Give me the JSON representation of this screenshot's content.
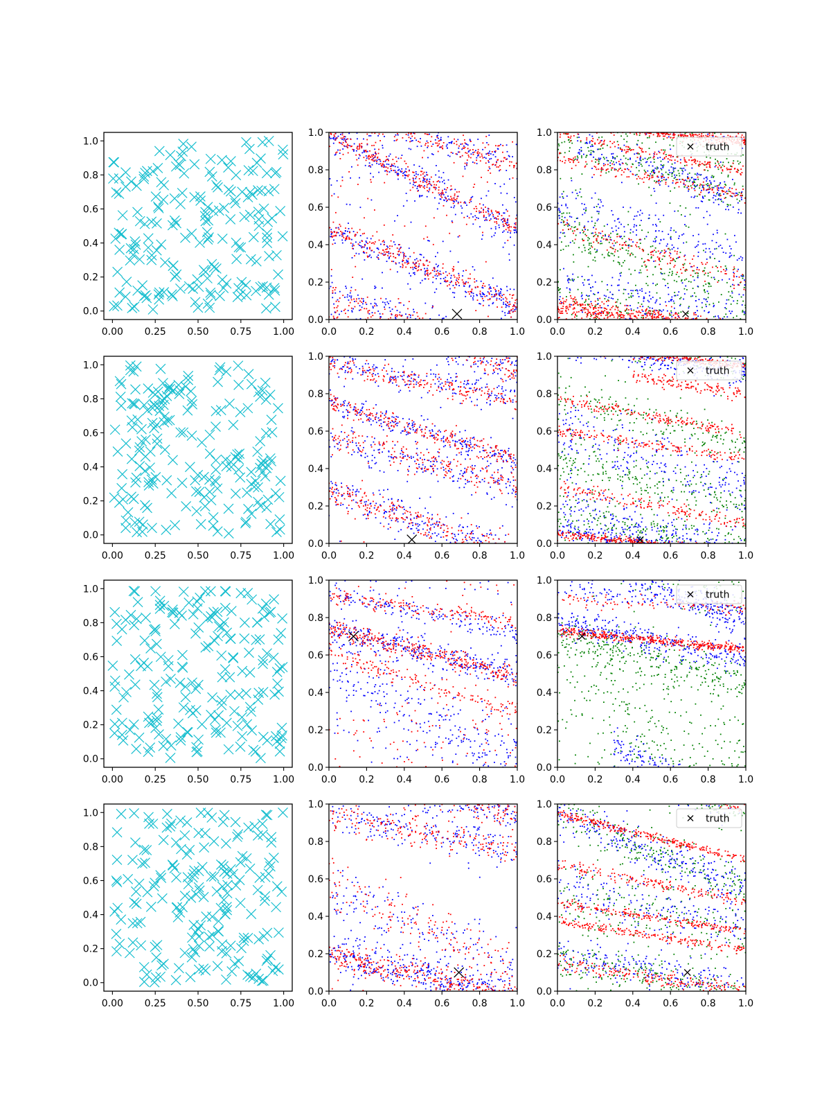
{
  "colors": {
    "background": "#ffffff",
    "axis": "#000000",
    "draws": "#17becf",
    "red": "#ff0000",
    "blue": "#0000ff",
    "green": "#008000",
    "truth": "#000000"
  },
  "legend_label": "truth",
  "tick_labels": {
    "left_x": [
      "0.00",
      "0.25",
      "0.50",
      "0.75",
      "1.00"
    ],
    "left_y": [
      "0.0",
      "0.2",
      "0.4",
      "0.6",
      "0.8",
      "1.0"
    ],
    "right_x": [
      "0.0",
      "0.2",
      "0.4",
      "0.6",
      "0.8",
      "1.0"
    ],
    "right_y": [
      "0.0",
      "0.2",
      "0.4",
      "0.6",
      "0.8",
      "1.0"
    ]
  },
  "chart_data": [
    {
      "type": "scatter",
      "row": 1,
      "column": 1,
      "marker": "x",
      "color": "#17becf",
      "xlim": [
        -0.05,
        1.05
      ],
      "ylim": [
        -0.05,
        1.05
      ],
      "n_points": 200,
      "xticks": [
        0,
        0.25,
        0.5,
        0.75,
        1.0
      ],
      "yticks": [
        0,
        0.2,
        0.4,
        0.6,
        0.8,
        1.0
      ],
      "title": "",
      "xlabel": "",
      "ylabel": ""
    },
    {
      "type": "scatter",
      "row": 1,
      "column": 2,
      "xlim": [
        0,
        1
      ],
      "ylim": [
        0,
        1
      ],
      "xticks": [
        0,
        0.2,
        0.4,
        0.6,
        0.8,
        1.0
      ],
      "yticks": [
        0,
        0.2,
        0.4,
        0.6,
        0.8,
        1.0
      ],
      "series": [
        {
          "color": "#0000ff",
          "bands": [
            [
              0.0,
              0.98,
              -0.5,
              0.04,
              0.08
            ],
            [
              0.0,
              0.47,
              -0.4,
              0.04,
              0.08
            ],
            [
              0.0,
              0.13,
              -0.3,
              0.05,
              0.06
            ],
            [
              0.0,
              0.8,
              -0.4,
              0.3,
              0.03
            ]
          ]
        },
        {
          "color": "#ff0000",
          "bands": [
            [
              0.0,
              0.99,
              -0.5,
              0.03,
              0.08
            ],
            [
              0.0,
              0.48,
              -0.4,
              0.03,
              0.08
            ],
            [
              0.0,
              0.12,
              -0.3,
              0.04,
              0.06
            ],
            [
              0.0,
              0.8,
              -0.4,
              0.3,
              0.03
            ]
          ]
        }
      ],
      "truth": {
        "x": 0.68,
        "y": 0.03
      }
    },
    {
      "type": "scatter",
      "row": 1,
      "column": 3,
      "xlim": [
        0,
        1
      ],
      "ylim": [
        0,
        1
      ],
      "xticks": [
        0,
        0.2,
        0.4,
        0.6,
        0.8,
        1.0
      ],
      "yticks": [
        0,
        0.2,
        0.4,
        0.6,
        0.8,
        1.0
      ],
      "series": [
        {
          "color": "#008000",
          "bands": [
            [
              0.0,
              0.95,
              -0.3,
              0.05,
              0.06
            ],
            [
              0.0,
              0.5,
              -0.4,
              0.08,
              0.08
            ],
            [
              0.0,
              0.15,
              -0.3,
              0.06,
              0.06
            ],
            [
              0.0,
              0.6,
              -0.4,
              0.3,
              0.03
            ]
          ]
        },
        {
          "color": "#0000ff",
          "bands": [
            [
              0.1,
              0.98,
              -0.35,
              0.05,
              0.07
            ],
            [
              0.0,
              0.6,
              -0.3,
              0.08,
              0.07
            ],
            [
              0.0,
              0.2,
              -0.2,
              0.06,
              0.06
            ]
          ]
        },
        {
          "color": "#ff0000",
          "bands": [
            [
              0.0,
              0.99,
              -0.2,
              0.015,
              0.05
            ],
            [
              0.0,
              0.86,
              -0.2,
              0.02,
              0.05
            ],
            [
              0.0,
              0.5,
              -0.3,
              0.03,
              0.05
            ],
            [
              0.0,
              0.1,
              -0.15,
              0.02,
              0.08
            ],
            [
              0.0,
              0.05,
              -0.1,
              0.015,
              0.08
            ]
          ]
        }
      ],
      "truth": {
        "x": 0.68,
        "y": 0.03
      }
    },
    {
      "type": "scatter",
      "row": 2,
      "column": 1,
      "marker": "x",
      "color": "#17becf",
      "xlim": [
        -0.05,
        1.05
      ],
      "ylim": [
        -0.05,
        1.05
      ],
      "n_points": 200,
      "xticks": [
        0,
        0.25,
        0.5,
        0.75,
        1.0
      ],
      "yticks": [
        0,
        0.2,
        0.4,
        0.6,
        0.8,
        1.0
      ],
      "title": "",
      "xlabel": "",
      "ylabel": ""
    },
    {
      "type": "scatter",
      "row": 2,
      "column": 2,
      "xlim": [
        0,
        1
      ],
      "ylim": [
        0,
        1
      ],
      "xticks": [
        0,
        0.2,
        0.4,
        0.6,
        0.8,
        1.0
      ],
      "yticks": [
        0,
        0.2,
        0.4,
        0.6,
        0.8,
        1.0
      ],
      "series": [
        {
          "color": "#0000ff",
          "bands": [
            [
              0.0,
              0.97,
              -0.2,
              0.04,
              0.06
            ],
            [
              0.0,
              0.75,
              -0.3,
              0.03,
              0.07
            ],
            [
              0.0,
              0.55,
              -0.25,
              0.05,
              0.06
            ],
            [
              0.0,
              0.28,
              -0.35,
              0.05,
              0.08
            ]
          ]
        },
        {
          "color": "#ff0000",
          "bands": [
            [
              0.0,
              0.96,
              -0.2,
              0.03,
              0.06
            ],
            [
              0.0,
              0.75,
              -0.3,
              0.025,
              0.07
            ],
            [
              0.0,
              0.57,
              -0.25,
              0.04,
              0.06
            ],
            [
              0.0,
              0.28,
              -0.35,
              0.04,
              0.08
            ]
          ]
        }
      ],
      "truth": {
        "x": 0.44,
        "y": 0.02
      }
    },
    {
      "type": "scatter",
      "row": 2,
      "column": 3,
      "xlim": [
        0,
        1
      ],
      "ylim": [
        0,
        1
      ],
      "xticks": [
        0,
        0.2,
        0.4,
        0.6,
        0.8,
        1.0
      ],
      "yticks": [
        0,
        0.2,
        0.4,
        0.6,
        0.8,
        1.0
      ],
      "series": [
        {
          "color": "#008000",
          "bands": [
            [
              0.0,
              0.8,
              -0.3,
              0.06,
              0.06
            ],
            [
              0.0,
              0.45,
              -0.25,
              0.08,
              0.08
            ],
            [
              0.0,
              0.15,
              -0.2,
              0.06,
              0.07
            ]
          ]
        },
        {
          "color": "#0000ff",
          "bands": [
            [
              0.0,
              0.6,
              -0.3,
              0.08,
              0.07
            ],
            [
              0.0,
              0.2,
              -0.25,
              0.07,
              0.07
            ],
            [
              0.0,
              0.06,
              -0.15,
              0.03,
              0.08
            ]
          ]
        },
        {
          "color": "#ff0000",
          "bands": [
            [
              0.0,
              0.77,
              -0.18,
              0.015,
              0.05
            ],
            [
              0.0,
              0.6,
              -0.15,
              0.015,
              0.05
            ],
            [
              0.0,
              0.3,
              -0.2,
              0.02,
              0.05
            ],
            [
              0.0,
              0.05,
              -0.1,
              0.012,
              0.1
            ],
            [
              0.4,
              0.95,
              -0.15,
              0.02,
              0.04
            ]
          ]
        }
      ],
      "truth": {
        "x": 0.44,
        "y": 0.02
      }
    },
    {
      "type": "scatter",
      "row": 3,
      "column": 1,
      "marker": "x",
      "color": "#17becf",
      "xlim": [
        -0.05,
        1.05
      ],
      "ylim": [
        -0.05,
        1.05
      ],
      "n_points": 200,
      "xticks": [
        0,
        0.25,
        0.5,
        0.75,
        1.0
      ],
      "yticks": [
        0,
        0.2,
        0.4,
        0.6,
        0.8,
        1.0
      ],
      "title": "",
      "xlabel": "",
      "ylabel": ""
    },
    {
      "type": "scatter",
      "row": 3,
      "column": 2,
      "xlim": [
        0,
        1
      ],
      "ylim": [
        0,
        1
      ],
      "xticks": [
        0,
        0.2,
        0.4,
        0.6,
        0.8,
        1.0
      ],
      "yticks": [
        0,
        0.2,
        0.4,
        0.6,
        0.8,
        1.0
      ],
      "series": [
        {
          "color": "#0000ff",
          "bands": [
            [
              0.0,
              0.74,
              -0.25,
              0.04,
              0.1
            ],
            [
              0.0,
              0.92,
              -0.2,
              0.03,
              0.05
            ],
            [
              0.0,
              0.55,
              -0.5,
              0.08,
              0.06
            ],
            [
              0.0,
              0.2,
              -0.1,
              0.15,
              0.03
            ]
          ]
        },
        {
          "color": "#ff0000",
          "bands": [
            [
              0.0,
              0.74,
              -0.25,
              0.025,
              0.1
            ],
            [
              0.0,
              0.92,
              -0.15,
              0.02,
              0.05
            ],
            [
              0.0,
              0.6,
              -0.3,
              0.03,
              0.05
            ],
            [
              0.0,
              0.2,
              -0.1,
              0.15,
              0.03
            ]
          ]
        }
      ],
      "truth": {
        "x": 0.13,
        "y": 0.7
      }
    },
    {
      "type": "scatter",
      "row": 3,
      "column": 3,
      "xlim": [
        0,
        1
      ],
      "ylim": [
        0,
        1
      ],
      "xticks": [
        0,
        0.2,
        0.4,
        0.6,
        0.8,
        1.0
      ],
      "yticks": [
        0,
        0.2,
        0.4,
        0.6,
        0.8,
        1.0
      ],
      "series": [
        {
          "color": "#008000",
          "bands": [
            [
              0.0,
              0.7,
              -0.25,
              0.06,
              0.1
            ],
            [
              0.0,
              0.5,
              -0.5,
              0.15,
              0.06
            ],
            [
              0.0,
              0.2,
              -0.1,
              0.15,
              0.03
            ]
          ]
        },
        {
          "color": "#0000ff",
          "bands": [
            [
              0.0,
              0.78,
              -0.2,
              0.04,
              0.1
            ],
            [
              0.3,
              0.25,
              -0.5,
              0.05,
              0.08
            ],
            [
              0.0,
              0.95,
              -0.1,
              0.03,
              0.04
            ]
          ]
        },
        {
          "color": "#ff0000",
          "bands": [
            [
              0.0,
              0.73,
              -0.1,
              0.012,
              0.12
            ],
            [
              0.0,
              0.9,
              -0.05,
              0.02,
              0.03
            ]
          ]
        }
      ],
      "truth": {
        "x": 0.13,
        "y": 0.7
      }
    },
    {
      "type": "scatter",
      "row": 4,
      "column": 1,
      "marker": "x",
      "color": "#17becf",
      "xlim": [
        -0.05,
        1.05
      ],
      "ylim": [
        -0.05,
        1.05
      ],
      "n_points": 200,
      "xticks": [
        0,
        0.25,
        0.5,
        0.75,
        1.0
      ],
      "yticks": [
        0,
        0.2,
        0.4,
        0.6,
        0.8,
        1.0
      ],
      "title": "",
      "xlabel": "",
      "ylabel": ""
    },
    {
      "type": "scatter",
      "row": 4,
      "column": 2,
      "xlim": [
        0,
        1
      ],
      "ylim": [
        0,
        1
      ],
      "xticks": [
        0,
        0.2,
        0.4,
        0.6,
        0.8,
        1.0
      ],
      "yticks": [
        0,
        0.2,
        0.4,
        0.6,
        0.8,
        1.0
      ],
      "series": [
        {
          "color": "#0000ff",
          "bands": [
            [
              0.0,
              0.2,
              -0.25,
              0.05,
              0.1
            ],
            [
              0.0,
              0.95,
              -0.2,
              0.05,
              0.06
            ],
            [
              0.0,
              0.5,
              -0.4,
              0.1,
              0.06
            ]
          ]
        },
        {
          "color": "#ff0000",
          "bands": [
            [
              0.0,
              0.2,
              -0.25,
              0.04,
              0.1
            ],
            [
              0.0,
              0.95,
              -0.2,
              0.04,
              0.06
            ],
            [
              0.0,
              0.6,
              -0.5,
              0.08,
              0.05
            ]
          ]
        }
      ],
      "truth": {
        "x": 0.69,
        "y": 0.1
      }
    },
    {
      "type": "scatter",
      "row": 4,
      "column": 3,
      "xlim": [
        0,
        1
      ],
      "ylim": [
        0,
        1
      ],
      "xticks": [
        0,
        0.2,
        0.4,
        0.6,
        0.8,
        1.0
      ],
      "yticks": [
        0,
        0.2,
        0.4,
        0.6,
        0.8,
        1.0
      ],
      "series": [
        {
          "color": "#008000",
          "bands": [
            [
              0.0,
              0.95,
              -0.4,
              0.06,
              0.07
            ],
            [
              0.0,
              0.5,
              -0.2,
              0.1,
              0.06
            ],
            [
              0.0,
              0.18,
              -0.2,
              0.06,
              0.07
            ]
          ]
        },
        {
          "color": "#0000ff",
          "bands": [
            [
              0.0,
              0.95,
              -0.4,
              0.05,
              0.08
            ],
            [
              0.0,
              0.55,
              -0.2,
              0.08,
              0.06
            ],
            [
              0.0,
              0.2,
              -0.2,
              0.05,
              0.06
            ]
          ]
        },
        {
          "color": "#ff0000",
          "bands": [
            [
              0.0,
              0.95,
              -0.25,
              0.012,
              0.08
            ],
            [
              0.0,
              0.68,
              -0.2,
              0.015,
              0.05
            ],
            [
              0.0,
              0.47,
              -0.15,
              0.012,
              0.06
            ],
            [
              0.0,
              0.37,
              -0.15,
              0.012,
              0.06
            ],
            [
              0.0,
              0.15,
              -0.15,
              0.02,
              0.06
            ]
          ]
        }
      ],
      "truth": {
        "x": 0.69,
        "y": 0.1
      }
    }
  ]
}
